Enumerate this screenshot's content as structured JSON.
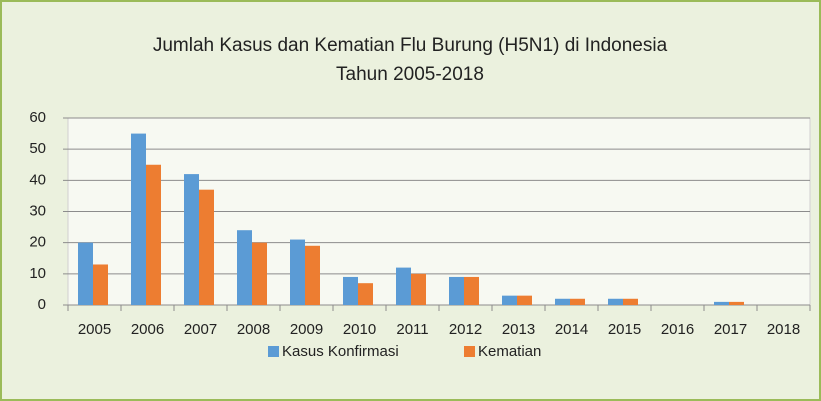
{
  "chart_data": {
    "type": "bar",
    "title": [
      "Jumlah Kasus dan Kematian Flu Burung (H5N1) di Indonesia",
      "Tahun 2005-2018"
    ],
    "categories": [
      "2005",
      "2006",
      "2007",
      "2008",
      "2009",
      "2010",
      "2011",
      "2012",
      "2013",
      "2014",
      "2015",
      "2016",
      "2017",
      "2018"
    ],
    "series": [
      {
        "name": "Kasus Konfirmasi",
        "color": "#5b9bd5",
        "values": [
          20,
          55,
          42,
          24,
          21,
          9,
          12,
          9,
          3,
          2,
          2,
          0,
          1,
          0
        ]
      },
      {
        "name": "Kematian",
        "color": "#ed7d31",
        "values": [
          13,
          45,
          37,
          20,
          19,
          7,
          10,
          9,
          3,
          2,
          2,
          0,
          1,
          0
        ]
      }
    ],
    "ylim": [
      0,
      60
    ],
    "yticks": [
      0,
      10,
      20,
      30,
      40,
      50,
      60
    ],
    "grid": true,
    "legend": "bottom"
  }
}
